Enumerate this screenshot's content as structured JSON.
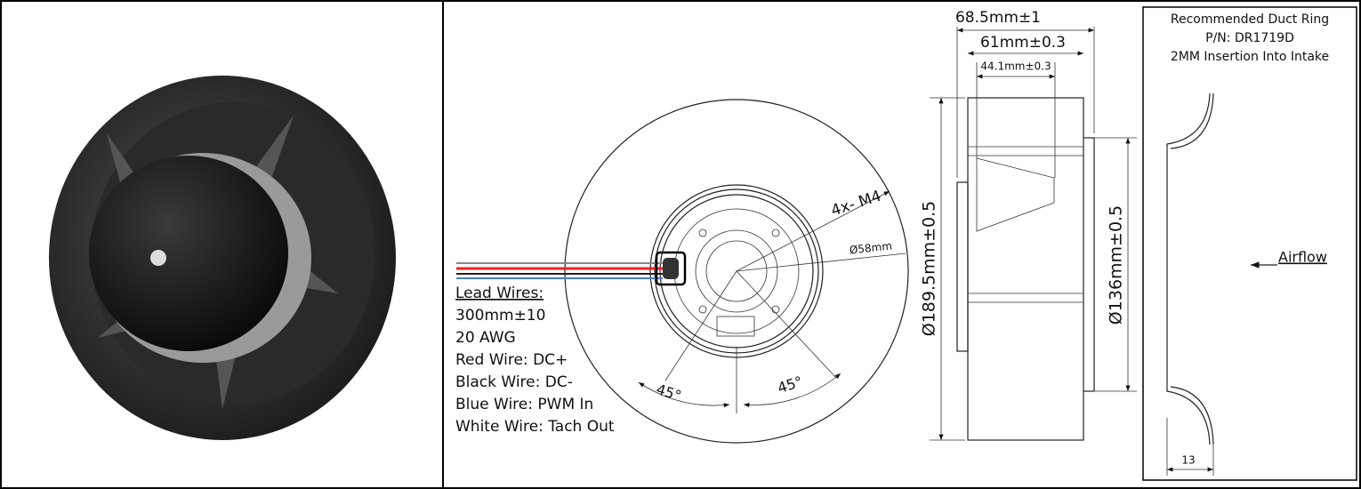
{
  "dimensions": {
    "overall_depth": "68.5mm±1",
    "housing_depth": "61mm±0.3",
    "inlet_depth": "44.1mm±0.3",
    "outer_diameter": "Ø189.5mm±0.5",
    "inlet_diameter": "Ø136mm±0.5",
    "mount_holes": "4x- M4",
    "hub_diameter": "Ø58mm",
    "angle_left": "45°",
    "angle_right": "45°"
  },
  "lead_wires": {
    "title": "Lead Wires:",
    "lines": [
      "300mm±10",
      "20 AWG",
      "Red Wire: DC+",
      "Black Wire: DC-",
      "Blue Wire: PWM In",
      "White Wire: Tach Out"
    ]
  },
  "duct_ring": {
    "lines": [
      "Recommended Duct Ring",
      "P/N: DR1719D",
      "2MM Insertion Into Intake"
    ],
    "airflow": "Airflow",
    "insertion_depth": "13"
  }
}
